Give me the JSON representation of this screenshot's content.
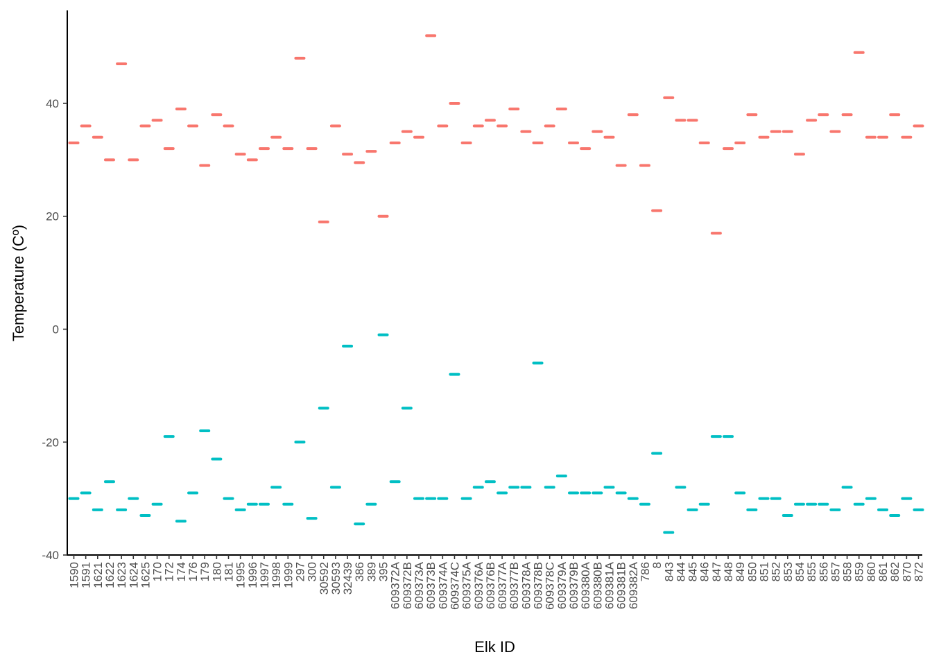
{
  "chart_data": {
    "type": "scatter",
    "xlabel": "Elk ID",
    "ylabel": "Temperature (Cº)",
    "ylim": [
      -40.5,
      56
    ],
    "yticks": [
      -40,
      -20,
      0,
      20,
      40
    ],
    "grid": false,
    "legend": "none",
    "marker": "horizontal-dash",
    "categories": [
      "1590",
      "1591",
      "1621",
      "1622",
      "1623",
      "1624",
      "1625",
      "170",
      "172",
      "174",
      "176",
      "179",
      "180",
      "181",
      "1995",
      "1996",
      "1997",
      "1998",
      "1999",
      "297",
      "300",
      "30592",
      "30593",
      "32439",
      "386",
      "389",
      "395",
      "609372A",
      "609372B",
      "609373A",
      "609373B",
      "609374A",
      "609374C",
      "609375A",
      "609376A",
      "609376B",
      "609377A",
      "609377B",
      "609378A",
      "609378B",
      "609378C",
      "609379A",
      "609379B",
      "609380A",
      "609380B",
      "609381A",
      "609381B",
      "609382A",
      "786",
      "8",
      "843",
      "844",
      "845",
      "846",
      "847",
      "848",
      "849",
      "850",
      "851",
      "852",
      "853",
      "854",
      "855",
      "856",
      "857",
      "858",
      "859",
      "860",
      "861",
      "862",
      "870",
      "872"
    ],
    "series": [
      {
        "color": "#F8766D",
        "values": [
          33,
          36,
          34,
          30,
          47,
          30,
          36,
          37,
          32,
          39,
          36,
          29,
          38,
          36,
          31,
          30,
          32,
          34,
          32,
          48,
          32,
          19,
          36,
          31,
          29.5,
          31.5,
          20,
          33,
          35,
          34,
          52,
          36,
          40,
          33,
          36,
          37,
          36,
          39,
          35,
          33,
          36,
          39,
          33,
          32,
          35,
          34,
          29,
          38,
          29,
          21,
          41,
          37,
          37,
          33,
          17,
          32,
          33,
          38,
          34,
          35,
          35,
          31,
          37,
          38,
          35,
          38,
          49,
          34,
          34,
          38,
          34,
          36
        ]
      },
      {
        "color": "#00BFC4",
        "values": [
          -30,
          -29,
          -32,
          -27,
          -32,
          -30,
          -33,
          -31,
          -19,
          -34,
          -29,
          -18,
          -23,
          -30,
          -32,
          -31,
          -31,
          -28,
          -31,
          -20,
          -33.5,
          -14,
          -28,
          -3,
          -34.5,
          -31,
          -1,
          -27,
          -14,
          -30,
          -30,
          -30,
          -8,
          -30,
          -28,
          -27,
          -29,
          -28,
          -28,
          -6,
          -28,
          -26,
          -29,
          -29,
          -29,
          -28,
          -29,
          -30,
          -31,
          -22,
          -36,
          -28,
          -32,
          -31,
          -19,
          -19,
          -29,
          -32,
          -30,
          -30,
          -33,
          -31,
          -31,
          -31,
          -32,
          -28,
          -31,
          -30,
          -32,
          -33,
          -30,
          -32
        ]
      }
    ]
  }
}
